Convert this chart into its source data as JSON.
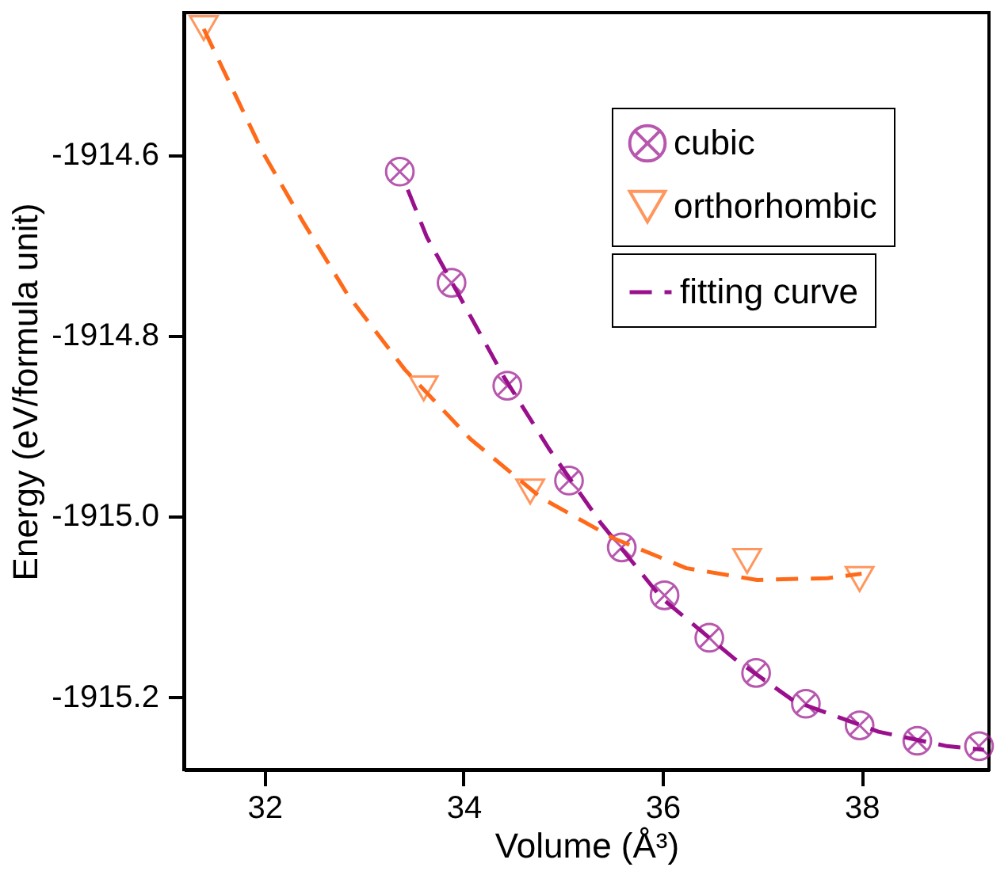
{
  "chart_data": {
    "type": "scatter",
    "xlabel": "Volume (Å³)",
    "ylabel": "Energy (eV/formula unit)",
    "xlim": [
      31.19,
      39.28
    ],
    "xticks": [
      32,
      34,
      36,
      38
    ],
    "ylim": [
      -1915.281,
      -1914.443
    ],
    "yticks": [
      {
        "value": -1914.6,
        "label": "-1914.6"
      },
      {
        "value": -1914.8,
        "label": "-1914.8"
      },
      {
        "value": -1915.0,
        "label": "-1915.0"
      },
      {
        "value": -1915.2,
        "label": "-1915.2"
      }
    ],
    "grid": false,
    "legend": "top right",
    "series": [
      {
        "name": "cubic",
        "marker": "cross",
        "color": "#990f8c",
        "x": [
          33.36,
          33.88,
          34.44,
          35.06,
          35.59,
          36.02,
          36.47,
          36.94,
          37.44,
          37.98,
          38.56,
          39.18
        ],
        "values": [
          -1914.619,
          -1914.742,
          -1914.856,
          -1914.961,
          -1915.035,
          -1915.088,
          -1915.135,
          -1915.174,
          -1915.208,
          -1915.232,
          -1915.249,
          -1915.255
        ]
      },
      {
        "name": "orthorhombic",
        "marker": "triangle",
        "color": "#ff6a1a",
        "x": [
          31.39,
          33.6,
          34.67,
          36.85,
          37.98
        ],
        "values": [
          -1914.46,
          -1914.859,
          -1914.973,
          -1915.05,
          -1915.07
        ]
      },
      {
        "name": "fitting curve",
        "type": "line",
        "line_style": "dashed",
        "marker": "none",
        "color": "#990f8c",
        "x": [
          33.44,
          33.63,
          34.01,
          34.41,
          34.86,
          35.38,
          35.99,
          36.72,
          37.32,
          38.17,
          38.86,
          39.23
        ],
        "values": [
          -1914.639,
          -1914.691,
          -1914.767,
          -1914.847,
          -1914.926,
          -1915.008,
          -1915.091,
          -1915.158,
          -1915.205,
          -1915.239,
          -1915.255,
          -1915.259
        ]
      },
      {
        "type": "line",
        "line_style": "dashed",
        "marker": "none",
        "color": "#ff6a1a",
        "x": [
          31.39,
          31.98,
          32.39,
          32.84,
          33.41,
          34.07,
          34.78,
          35.51,
          36.24,
          36.95,
          37.66,
          38.0
        ],
        "values": [
          -1914.461,
          -1914.597,
          -1914.675,
          -1914.756,
          -1914.838,
          -1914.915,
          -1914.98,
          -1915.025,
          -1915.058,
          -1915.071,
          -1915.069,
          -1915.064
        ]
      }
    ]
  }
}
